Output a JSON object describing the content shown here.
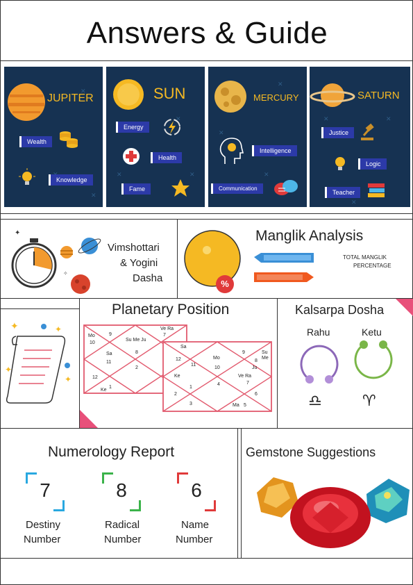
{
  "page": {
    "title": "Answers & Guide"
  },
  "planets": [
    {
      "name": "JUPITER",
      "tags": [
        "Wealth",
        "Knowledge"
      ],
      "icons": [
        "coins-icon",
        "lightbulb-icon"
      ]
    },
    {
      "name": "SUN",
      "tags": [
        "Energy",
        "Health",
        "Fame"
      ],
      "icons": [
        "energy-icon",
        "health-cross-icon",
        "star-icon"
      ]
    },
    {
      "name": "MERCURY",
      "tags": [
        "Intelligence",
        "Communication"
      ],
      "icons": [
        "head-bulb-icon",
        "chat-bubbles-icon"
      ]
    },
    {
      "name": "SATURN",
      "tags": [
        "Justice",
        "Logic",
        "Teacher"
      ],
      "icons": [
        "gavel-icon",
        "lightbulb-icon",
        "books-icon"
      ]
    }
  ],
  "dasha": {
    "line1": "Vimshottari",
    "line2": "& Yogini",
    "line3": "Dasha"
  },
  "manglik": {
    "title": "Manglik Analysis",
    "total_line1": "TOTAL  MANGLIK",
    "total_line2": "PERCENTAGE",
    "badge": "%"
  },
  "planetary": {
    "title": "Planetary Position",
    "chart1": [
      "Ve Ra",
      "Mo",
      "10",
      "9",
      "Su Me Ju",
      "7",
      "Sa",
      "11",
      "8",
      "2",
      "12",
      "Ke",
      "1"
    ],
    "chart2": [
      "Sa",
      "12",
      "Su",
      "Me",
      "Mo",
      "9",
      "8",
      "10",
      "11",
      "Ke",
      "Ve Ra",
      "4",
      "7",
      "1",
      "2",
      "6",
      "3",
      "Ma",
      "5",
      "Ju"
    ]
  },
  "kalsarpa": {
    "title": "Kalsarpa Dosha",
    "rahu": "Rahu",
    "ketu": "Ketu",
    "rahu_sign": "♎",
    "ketu_sign": "♈"
  },
  "numerology": {
    "title": "Numerology Report",
    "items": [
      {
        "value": "7",
        "line1": "Destiny",
        "line2": "Number",
        "color": "#29a8e0"
      },
      {
        "value": "8",
        "line1": "Radical",
        "line2": "Number",
        "color": "#3bb34a"
      },
      {
        "value": "6",
        "line1": "Name",
        "line2": "Number",
        "color": "#e03a3a"
      }
    ]
  },
  "gemstone": {
    "title": "Gemstone Suggestions"
  },
  "colors": {
    "card_bg": "#163252",
    "gold": "#f5b923",
    "tag_blue": "#2c3aa8",
    "pink": "#e8507a",
    "chart_line": "#e25a6e"
  }
}
